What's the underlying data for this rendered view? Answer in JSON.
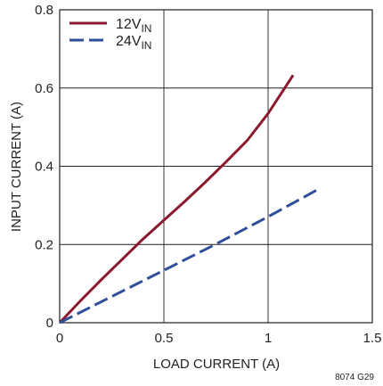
{
  "chart_data": {
    "type": "line",
    "xlabel": "LOAD CURRENT (A)",
    "ylabel": "INPUT CURRENT (A)",
    "xlim": [
      0,
      1.5
    ],
    "ylim": [
      0,
      0.8
    ],
    "xticks": [
      "0",
      "0.5",
      "1",
      "1.5"
    ],
    "yticks": [
      "0",
      "0.2",
      "0.4",
      "0.6",
      "0.8"
    ],
    "grid": true,
    "legend_position": "top-left",
    "series": [
      {
        "name": "12V",
        "name_subscript": "IN",
        "color": "#8b1a2f",
        "style": "solid",
        "x": [
          0,
          0.1,
          0.2,
          0.3,
          0.4,
          0.5,
          0.6,
          0.7,
          0.8,
          0.9,
          1.0,
          1.12
        ],
        "y": [
          0,
          0.056,
          0.11,
          0.162,
          0.214,
          0.262,
          0.31,
          0.36,
          0.412,
          0.466,
          0.535,
          0.633
        ]
      },
      {
        "name": "24V",
        "name_subscript": "IN",
        "color": "#2f4f9a",
        "style": "dashed",
        "x": [
          0,
          0.25,
          0.5,
          0.75,
          1.0,
          1.25
        ],
        "y": [
          0,
          0.067,
          0.134,
          0.201,
          0.271,
          0.344
        ]
      }
    ]
  },
  "figure_id": "8074 G29"
}
